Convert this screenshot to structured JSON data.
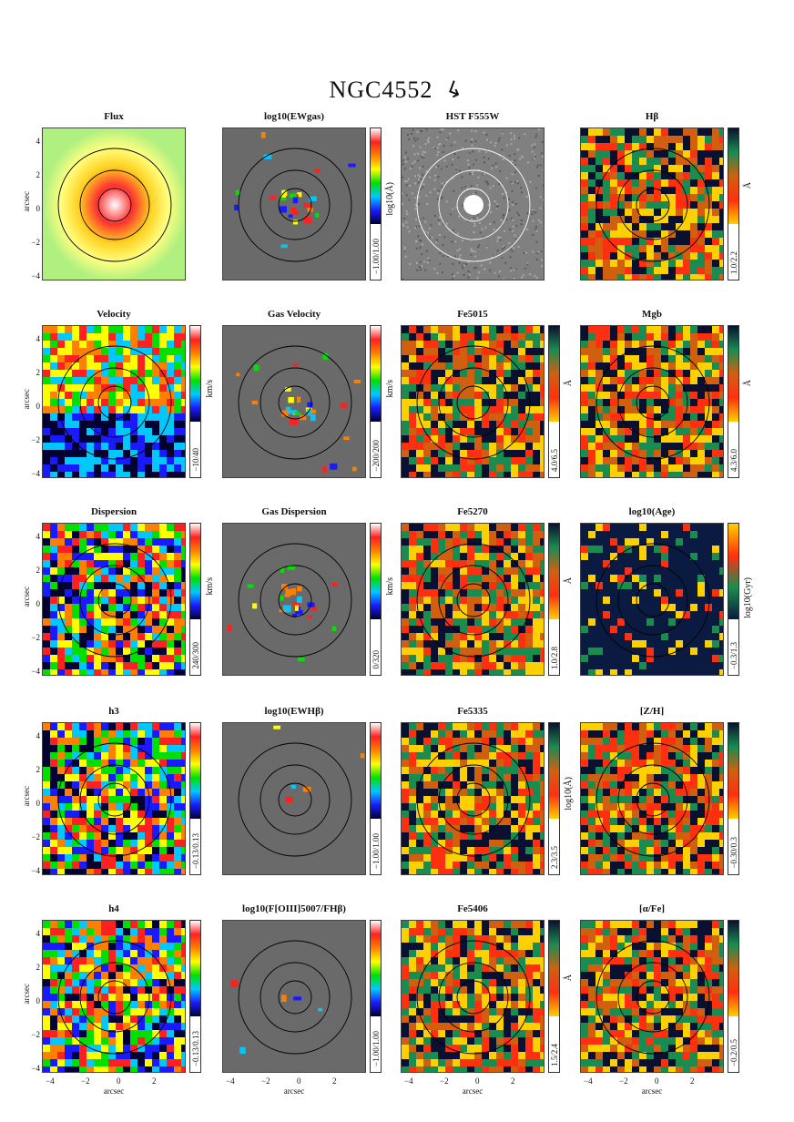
{
  "figure": {
    "title": "NGC4552",
    "arrow_glyph": "↳",
    "axis_label": "arcsec",
    "y_ticks": [
      "4",
      "2",
      "0",
      "−2",
      "−4"
    ],
    "x_ticks": [
      "−4",
      "−2",
      "0",
      "2"
    ],
    "colors": {
      "rainbow": [
        "#000033",
        "#1a1aff",
        "#00c8ff",
        "#00e000",
        "#ffff00",
        "#ff8000",
        "#ff2020",
        "#ffffff"
      ],
      "index": [
        "#0a1030",
        "#1a8c50",
        "#d06010",
        "#ff3010",
        "#ffd000"
      ],
      "age": [
        "#ffd000",
        "#ff3010",
        "#1a8c50",
        "#0a1a40"
      ],
      "masked": "#6a6a6a",
      "flux": [
        "#ffffff",
        "#ff3030",
        "#ffd020",
        "#ffff80",
        "#b0f080"
      ]
    }
  },
  "panels": [
    {
      "title": "Flux",
      "cbar": "",
      "unit": "",
      "kind": "flux"
    },
    {
      "title": "log10(EWgas)",
      "cbar": "−1.00/1.00",
      "unit": "log10(Å)",
      "kind": "gas"
    },
    {
      "title": "HST F555W",
      "cbar": "",
      "unit": "",
      "kind": "hst"
    },
    {
      "title": "Hβ",
      "cbar": "1.0/2.2",
      "unit": "Å",
      "kind": "index"
    },
    {
      "title": "Velocity",
      "cbar": "−10/40",
      "unit": "km/s",
      "kind": "velocity"
    },
    {
      "title": "Gas Velocity",
      "cbar": "−200/200",
      "unit": "km/s",
      "kind": "gas"
    },
    {
      "title": "Fe5015",
      "cbar": "4.0/6.5",
      "unit": "Å",
      "kind": "index"
    },
    {
      "title": "Mgb",
      "cbar": "4.3/6.0",
      "unit": "Å",
      "kind": "index"
    },
    {
      "title": "Dispersion",
      "cbar": "240/300",
      "unit": "km/s",
      "kind": "rainbow"
    },
    {
      "title": "Gas Dispersion",
      "cbar": "0/320",
      "unit": "km/s",
      "kind": "gas"
    },
    {
      "title": "Fe5270",
      "cbar": "1.0/2.8",
      "unit": "Å",
      "kind": "index"
    },
    {
      "title": "log10(Age)",
      "cbar": "−0.3/1.3",
      "unit": "log10(Gyr)",
      "kind": "age"
    },
    {
      "title": "h3",
      "cbar": "−0.13/0.13",
      "unit": "",
      "kind": "rainbow"
    },
    {
      "title": "log10(EWHβ)",
      "cbar": "−1.00/1.00",
      "unit": "",
      "kind": "gasempty"
    },
    {
      "title": "Fe5335",
      "cbar": "2.3/3.5",
      "unit": "log10(Å)",
      "kind": "index"
    },
    {
      "title": "[Z/H]",
      "cbar": "−0.30/0.3",
      "unit": "",
      "kind": "index"
    },
    {
      "title": "h4",
      "cbar": "−0.13/0.13",
      "unit": "",
      "kind": "rainbow"
    },
    {
      "title": "log10(F[OIII]5007/FHβ)",
      "cbar": "−1.00/1.00",
      "unit": "",
      "kind": "gasempty"
    },
    {
      "title": "Fe5406",
      "cbar": "1.5/2.4",
      "unit": "Å",
      "kind": "index"
    },
    {
      "title": "[α/Fe]",
      "cbar": "−0.2/0.5",
      "unit": "",
      "kind": "index"
    }
  ]
}
